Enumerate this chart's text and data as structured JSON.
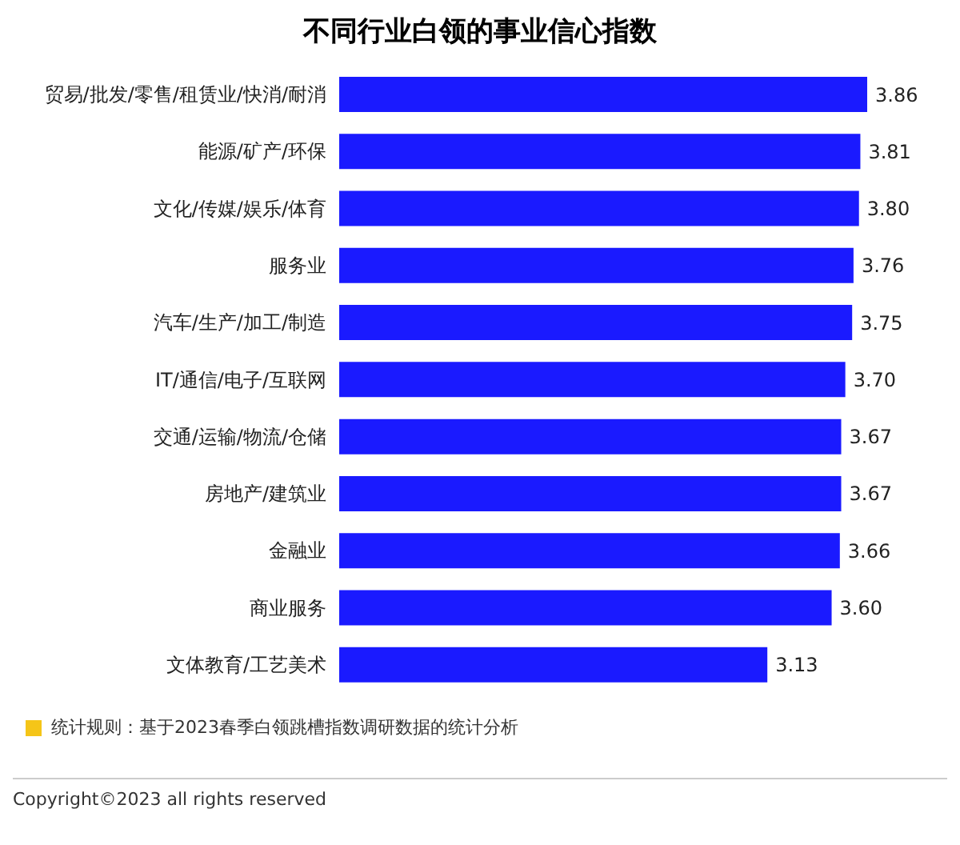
{
  "chart_data": {
    "type": "bar",
    "orientation": "horizontal",
    "title": "不同行业白领的事业信心指数",
    "categories": [
      "贸易/批发/零售/租赁业/快消/耐消",
      "能源/矿产/环保",
      "文化/传媒/娱乐/体育",
      "服务业",
      "汽车/生产/加工/制造",
      "IT/通信/电子/互联网",
      "交通/运输/物流/仓储",
      "房地产/建筑业",
      "金融业",
      "商业服务",
      "文体教育/工艺美术"
    ],
    "values": [
      3.86,
      3.81,
      3.8,
      3.76,
      3.75,
      3.7,
      3.67,
      3.67,
      3.66,
      3.6,
      3.13
    ],
    "value_labels": [
      "3.86",
      "3.81",
      "3.80",
      "3.76",
      "3.75",
      "3.70",
      "3.67",
      "3.67",
      "3.66",
      "3.60",
      "3.13"
    ],
    "color": "#1a1aff",
    "grid": false,
    "legend": false,
    "annotations": [
      "统计规则：基于2023春季白领跳槽指数调研数据的统计分析",
      "Copyright©2023 all rights reserved"
    ]
  }
}
